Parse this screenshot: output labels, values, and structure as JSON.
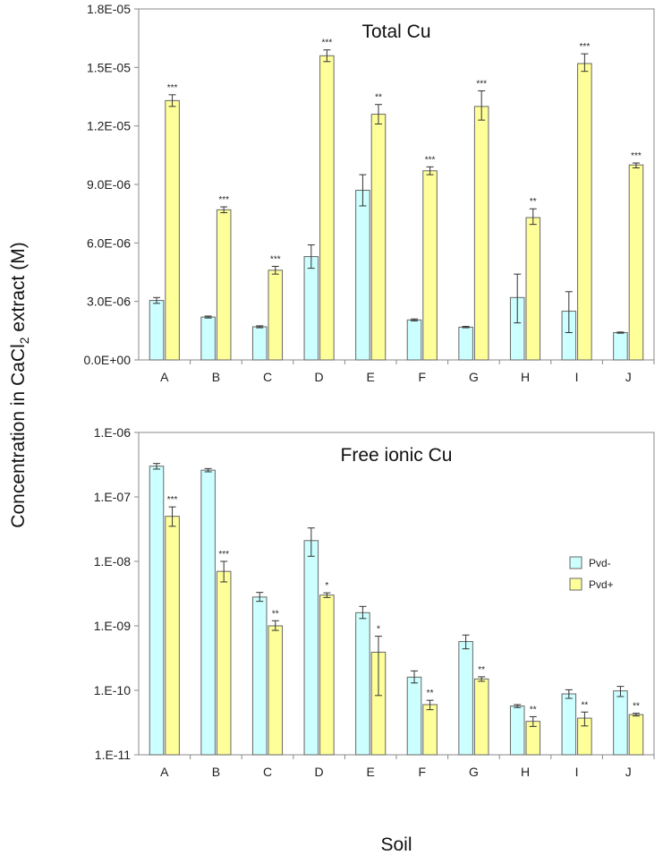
{
  "chart_data": [
    {
      "type": "bar",
      "title": "Total Cu",
      "scale": "linear",
      "categories": [
        "A",
        "B",
        "C",
        "D",
        "E",
        "F",
        "G",
        "H",
        "I",
        "J"
      ],
      "ylim": [
        0,
        1.8e-05
      ],
      "yticks": [
        0,
        3e-06,
        6e-06,
        9e-06,
        1.2e-05,
        1.5e-05,
        1.8e-05
      ],
      "ytick_labels": [
        "0.0E+00",
        "3.0E-06",
        "6.0E-06",
        "9.0E-06",
        "1.2E-05",
        "1.5E-05",
        "1.8E-05"
      ],
      "series": [
        {
          "name": "Pvd-",
          "color": "#ccffff",
          "values": [
            3.05e-06,
            2.2e-06,
            1.7e-06,
            5.3e-06,
            8.7e-06,
            2.05e-06,
            1.68e-06,
            3.2e-06,
            2.5e-06,
            1.4e-06
          ],
          "err_low": [
            2.9e-06,
            2.15e-06,
            1.65e-06,
            4.7e-06,
            7.9e-06,
            2e-06,
            1.65e-06,
            1.9e-06,
            1.4e-06,
            1.37e-06
          ],
          "err_high": [
            3.2e-06,
            2.25e-06,
            1.75e-06,
            5.9e-06,
            9.5e-06,
            2.1e-06,
            1.72e-06,
            4.4e-06,
            3.5e-06,
            1.43e-06
          ]
        },
        {
          "name": "Pvd+",
          "color": "#ffff99",
          "values": [
            1.33e-05,
            7.7e-06,
            4.6e-06,
            1.56e-05,
            1.26e-05,
            9.7e-06,
            1.3e-05,
            7.3e-06,
            1.52e-05,
            1e-05
          ],
          "err_low": [
            1.3e-05,
            7.55e-06,
            4.4e-06,
            1.53e-05,
            1.21e-05,
            9.5e-06,
            1.23e-05,
            6.95e-06,
            1.48e-05,
            9.85e-06
          ],
          "err_high": [
            1.36e-05,
            7.85e-06,
            4.8e-06,
            1.59e-05,
            1.31e-05,
            9.9e-06,
            1.38e-05,
            7.75e-06,
            1.57e-05,
            1.01e-05
          ],
          "significance": [
            "***",
            "***",
            "***",
            "***",
            "**",
            "***",
            "***",
            "**",
            "***",
            "***"
          ]
        }
      ]
    },
    {
      "type": "bar",
      "title": "Free ionic Cu",
      "scale": "log",
      "categories": [
        "A",
        "B",
        "C",
        "D",
        "E",
        "F",
        "G",
        "H",
        "I",
        "J"
      ],
      "ylim": [
        1e-11,
        1e-06
      ],
      "yticks": [
        1e-11,
        1e-10,
        1e-09,
        1e-08,
        1e-07,
        1e-06
      ],
      "ytick_labels": [
        "1.E-11",
        "1.E-10",
        "1.E-09",
        "1.E-08",
        "1.E-07",
        "1.E-06"
      ],
      "xlabel": "Soil",
      "legend_position": "right",
      "series": [
        {
          "name": "Pvd-",
          "color": "#ccffff",
          "values": [
            3e-07,
            2.6e-07,
            2.8e-09,
            2.1e-08,
            1.6e-09,
            1.6e-10,
            5.7e-10,
            5.7e-11,
            8.8e-11,
            9.8e-11
          ],
          "err_low": [
            2.7e-07,
            2.45e-07,
            2.4e-09,
            1.2e-08,
            1.3e-09,
            1.3e-10,
            4.4e-10,
            5.4e-11,
            7.5e-11,
            8e-11
          ],
          "err_high": [
            3.3e-07,
            2.75e-07,
            3.3e-09,
            3.3e-08,
            2e-09,
            2e-10,
            7.2e-10,
            6e-11,
            1.02e-10,
            1.15e-10
          ]
        },
        {
          "name": "Pvd+",
          "color": "#ffff99",
          "values": [
            5e-08,
            7e-09,
            1e-09,
            3e-09,
            3.9e-10,
            6e-11,
            1.5e-10,
            3.3e-11,
            3.7e-11,
            4.2e-11
          ],
          "err_low": [
            3.5e-08,
            4.8e-09,
            8.5e-10,
            2.75e-09,
            8.3e-11,
            5e-11,
            1.38e-10,
            2.75e-11,
            2.8e-11,
            4e-11
          ],
          "err_high": [
            7e-08,
            1e-08,
            1.2e-09,
            3.25e-09,
            6.9e-10,
            7e-11,
            1.62e-10,
            3.9e-11,
            4.6e-11,
            4.4e-11
          ],
          "significance": [
            "***",
            "***",
            "**",
            "*",
            "*",
            "**",
            "**",
            "**",
            "**",
            "**"
          ]
        }
      ]
    }
  ],
  "shared_ylabel_main": "Concentration in CaCl",
  "shared_ylabel_sub": "2",
  "shared_ylabel_tail": " extract (M)"
}
